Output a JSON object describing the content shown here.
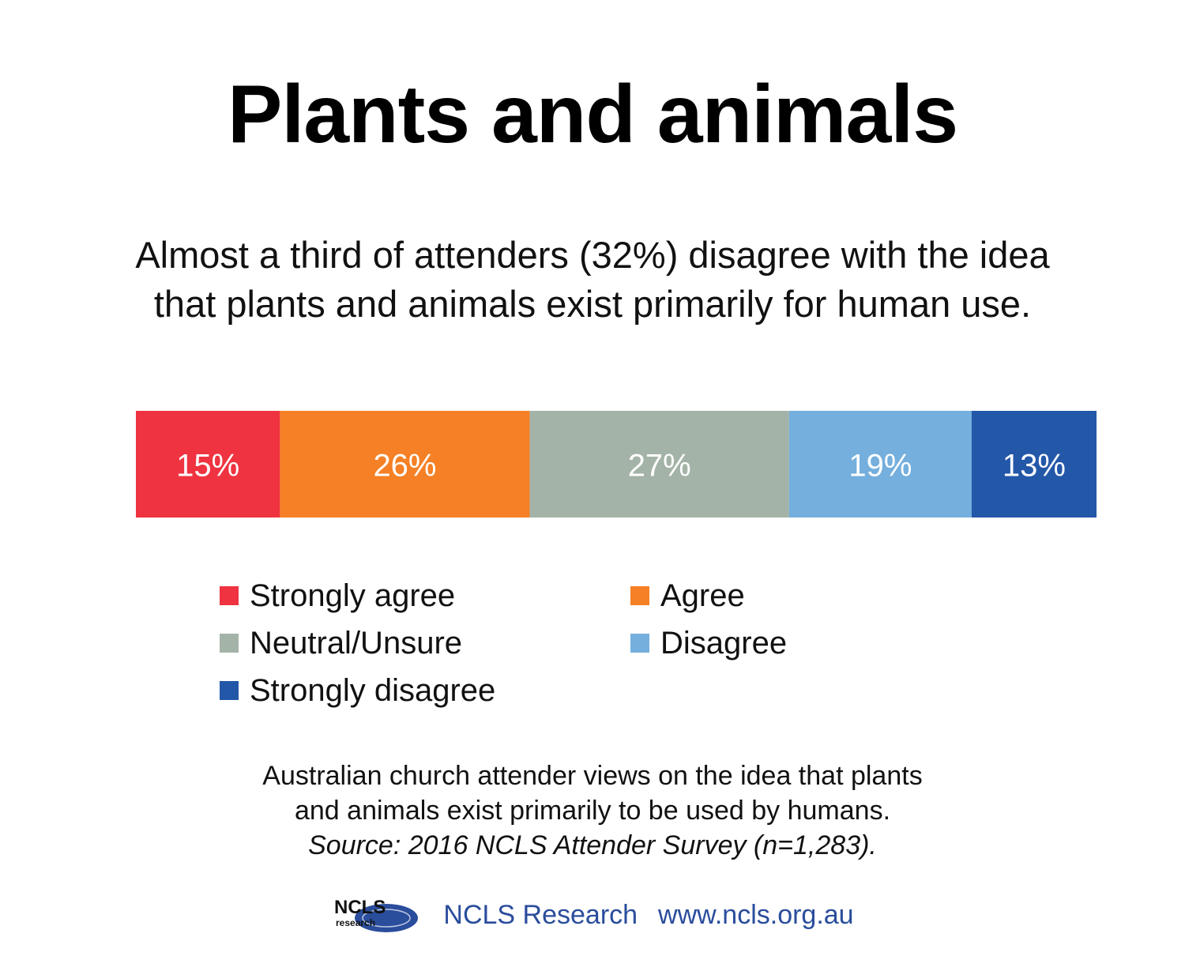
{
  "page": {
    "title": "Plants and animals",
    "subtitle_lines": [
      "Almost a third of attenders (32%) disagree with the idea",
      "that plants and animals exist primarily for human use."
    ],
    "caption_lines": [
      "Australian church attender views on the idea that plants",
      "and animals exist primarily to be used by humans."
    ],
    "source": "Source: 2016 NCLS Attender Survey (n=1,283).",
    "footer": {
      "logo_text": "NCLS",
      "logo_subtext": "research",
      "org": "NCLS Research",
      "url": "www.ncls.org.au",
      "brand_color": "#2a4d9c"
    }
  },
  "chart_data": {
    "type": "bar",
    "orientation": "horizontal-stacked",
    "unit": "%",
    "categories": [
      "Strongly agree",
      "Agree",
      "Neutral/Unsure",
      "Disagree",
      "Strongly disagree"
    ],
    "values": [
      15,
      26,
      27,
      19,
      13
    ],
    "data_labels": [
      "15%",
      "26%",
      "27%",
      "19%",
      "13%"
    ],
    "colors": [
      "#ef3340",
      "#f58025",
      "#a4b3a7",
      "#74afdd",
      "#2357a8"
    ],
    "label_color": "#ffffff",
    "legend": {
      "placement": "bottom",
      "entries": [
        "Strongly agree",
        "Agree",
        "Neutral/Unsure",
        "Disagree",
        "Strongly disagree"
      ]
    },
    "grid": false
  }
}
